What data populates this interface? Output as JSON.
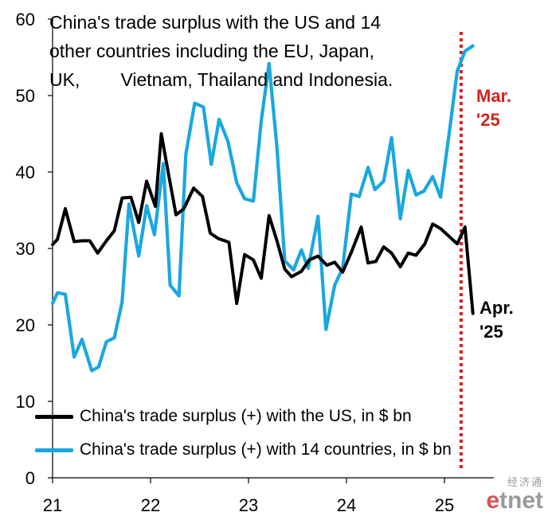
{
  "title_lines": [
    "China's trade surplus with the US and 14",
    "other countries including the EU, Japan,",
    "UK,        Vietnam, Thailand and Indonesia."
  ],
  "annotations": {
    "mar": {
      "line1": "Mar.",
      "line2": "'25",
      "color": "#d62020"
    },
    "apr": {
      "line1": "Apr.",
      "line2": "'25",
      "color": "#000000"
    }
  },
  "logo": {
    "cn": "经济通",
    "en_e": "e",
    "en_rest": "tnet"
  },
  "chart_data": {
    "type": "line",
    "ylim": [
      0,
      60
    ],
    "yticks": [
      0,
      10,
      20,
      30,
      40,
      50,
      60
    ],
    "xlim": [
      2021.0,
      2025.4
    ],
    "xticks": [
      {
        "value": 2021,
        "label": "21"
      },
      {
        "value": 2022,
        "label": "22"
      },
      {
        "value": 2023,
        "label": "23"
      },
      {
        "value": 2024,
        "label": "24"
      },
      {
        "value": 2025,
        "label": "25"
      }
    ],
    "marker_line": {
      "x": 2025.17,
      "color": "#d62020"
    },
    "series": [
      {
        "name": "China's trade surplus (+) with the US, in $ bn",
        "color": "#000000",
        "points": [
          [
            2021.0,
            30.5
          ],
          [
            2021.05,
            31.2
          ],
          [
            2021.13,
            35.2
          ],
          [
            2021.22,
            30.9
          ],
          [
            2021.3,
            31.0
          ],
          [
            2021.38,
            31.0
          ],
          [
            2021.46,
            29.4
          ],
          [
            2021.55,
            31.0
          ],
          [
            2021.63,
            32.3
          ],
          [
            2021.71,
            36.6
          ],
          [
            2021.8,
            36.7
          ],
          [
            2021.88,
            33.4
          ],
          [
            2021.96,
            38.8
          ],
          [
            2022.05,
            35.5
          ],
          [
            2022.11,
            45.0
          ],
          [
            2022.18,
            40.0
          ],
          [
            2022.26,
            34.4
          ],
          [
            2022.34,
            35.2
          ],
          [
            2022.44,
            37.9
          ],
          [
            2022.53,
            36.8
          ],
          [
            2022.61,
            32.0
          ],
          [
            2022.69,
            31.3
          ],
          [
            2022.8,
            30.8
          ],
          [
            2022.88,
            22.8
          ],
          [
            2022.96,
            29.2
          ],
          [
            2023.05,
            28.5
          ],
          [
            2023.13,
            26.1
          ],
          [
            2023.21,
            34.3
          ],
          [
            2023.29,
            31.0
          ],
          [
            2023.37,
            27.3
          ],
          [
            2023.44,
            26.3
          ],
          [
            2023.54,
            27.0
          ],
          [
            2023.62,
            28.5
          ],
          [
            2023.71,
            29.0
          ],
          [
            2023.8,
            27.8
          ],
          [
            2023.88,
            28.2
          ],
          [
            2023.96,
            26.9
          ],
          [
            2024.05,
            29.5
          ],
          [
            2024.15,
            32.8
          ],
          [
            2024.22,
            28.1
          ],
          [
            2024.3,
            28.3
          ],
          [
            2024.38,
            30.2
          ],
          [
            2024.46,
            29.4
          ],
          [
            2024.55,
            27.6
          ],
          [
            2024.63,
            29.4
          ],
          [
            2024.71,
            29.1
          ],
          [
            2024.8,
            30.6
          ],
          [
            2024.88,
            33.2
          ],
          [
            2024.96,
            32.6
          ],
          [
            2025.13,
            30.6
          ],
          [
            2025.21,
            32.8
          ],
          [
            2025.29,
            21.5
          ]
        ]
      },
      {
        "name": "China's trade surplus (+) with 14 countries, in $ bn",
        "color": "#1aa7e0",
        "points": [
          [
            2021.0,
            22.8
          ],
          [
            2021.05,
            24.2
          ],
          [
            2021.13,
            24.0
          ],
          [
            2021.22,
            15.8
          ],
          [
            2021.3,
            18.1
          ],
          [
            2021.4,
            14.0
          ],
          [
            2021.47,
            14.5
          ],
          [
            2021.55,
            17.8
          ],
          [
            2021.63,
            18.3
          ],
          [
            2021.71,
            23.0
          ],
          [
            2021.78,
            35.8
          ],
          [
            2021.88,
            29.0
          ],
          [
            2021.96,
            35.6
          ],
          [
            2022.04,
            31.8
          ],
          [
            2022.13,
            41.1
          ],
          [
            2022.2,
            25.2
          ],
          [
            2022.29,
            23.8
          ],
          [
            2022.36,
            42.3
          ],
          [
            2022.45,
            49.0
          ],
          [
            2022.54,
            48.5
          ],
          [
            2022.62,
            41.0
          ],
          [
            2022.7,
            46.9
          ],
          [
            2022.79,
            44.0
          ],
          [
            2022.88,
            38.6
          ],
          [
            2022.96,
            36.5
          ],
          [
            2023.05,
            36.2
          ],
          [
            2023.13,
            46.7
          ],
          [
            2023.21,
            54.2
          ],
          [
            2023.29,
            43.2
          ],
          [
            2023.37,
            28.4
          ],
          [
            2023.46,
            27.2
          ],
          [
            2023.54,
            29.8
          ],
          [
            2023.61,
            27.4
          ],
          [
            2023.71,
            34.2
          ],
          [
            2023.79,
            19.4
          ],
          [
            2023.88,
            25.2
          ],
          [
            2023.96,
            27.4
          ],
          [
            2024.05,
            37.1
          ],
          [
            2024.13,
            36.8
          ],
          [
            2024.22,
            40.6
          ],
          [
            2024.29,
            37.7
          ],
          [
            2024.38,
            38.8
          ],
          [
            2024.46,
            44.5
          ],
          [
            2024.55,
            33.9
          ],
          [
            2024.63,
            40.2
          ],
          [
            2024.71,
            37.0
          ],
          [
            2024.79,
            37.5
          ],
          [
            2024.88,
            39.4
          ],
          [
            2024.96,
            36.7
          ],
          [
            2025.05,
            45.2
          ],
          [
            2025.13,
            53.2
          ],
          [
            2025.21,
            55.8
          ],
          [
            2025.29,
            56.5
          ]
        ]
      }
    ]
  }
}
